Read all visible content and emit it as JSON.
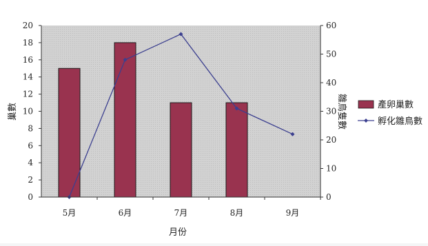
{
  "chart_data": {
    "type": "bar+line",
    "categories": [
      "5月",
      "6月",
      "7月",
      "8月",
      "9月"
    ],
    "xlabel": "月份",
    "left_axis": {
      "label": "巢數",
      "ylim": [
        0,
        20
      ],
      "ticks": [
        0,
        2,
        4,
        6,
        8,
        10,
        12,
        14,
        16,
        18,
        20
      ]
    },
    "right_axis": {
      "label": "雛鳥隻數",
      "ylim": [
        0,
        60
      ],
      "ticks": [
        0,
        10,
        20,
        30,
        40,
        50,
        60
      ]
    },
    "series": [
      {
        "name": "產卵巢數",
        "type": "bar",
        "axis": "left",
        "values": [
          15,
          18,
          11,
          11,
          null
        ]
      },
      {
        "name": "孵化雛鳥數",
        "type": "line",
        "axis": "right",
        "values": [
          0,
          48,
          57,
          31,
          22
        ]
      }
    ],
    "legend": "right",
    "grid": false
  },
  "colors": {
    "bar": "#99334f",
    "line": "#3b3f8f",
    "plot_area": "#cfcfcf",
    "background": "#ffffff"
  }
}
